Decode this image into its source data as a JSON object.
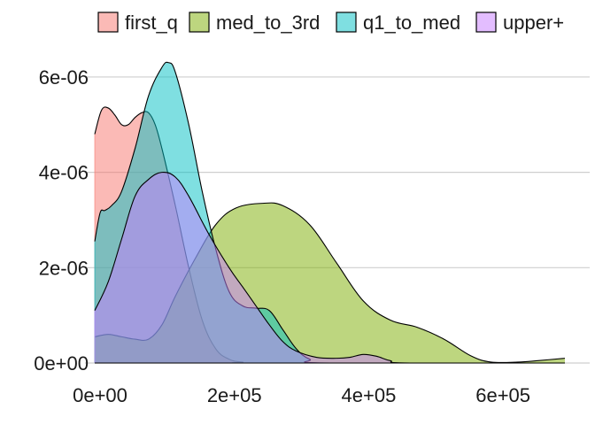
{
  "chart_data": {
    "type": "area",
    "x_axis": {
      "min": 0,
      "max": 700000,
      "ticks": [
        0,
        200000,
        400000,
        600000
      ],
      "tick_labels": [
        "0e+00",
        "2e+05",
        "4e+05",
        "6e+05"
      ]
    },
    "y_axis": {
      "min": 0,
      "max": 6.5e-06,
      "ticks": [
        0,
        2e-06,
        4e-06,
        6e-06
      ],
      "tick_labels": [
        "0e+00",
        "2e-06",
        "4e-06",
        "6e-06"
      ]
    },
    "grid": "horizontal",
    "legend_position": "top",
    "series": [
      {
        "name": "first_q",
        "color": "#F8766D",
        "points": [
          [
            0,
            4.8e-06
          ],
          [
            10000,
            5.3e-06
          ],
          [
            20000,
            5.35e-06
          ],
          [
            30000,
            5.2e-06
          ],
          [
            40000,
            5e-06
          ],
          [
            50000,
            5e-06
          ],
          [
            60000,
            5.15e-06
          ],
          [
            70000,
            5.25e-06
          ],
          [
            80000,
            5.25e-06
          ],
          [
            90000,
            5e-06
          ],
          [
            100000,
            4.5e-06
          ],
          [
            120000,
            3.3e-06
          ],
          [
            140000,
            2e-06
          ],
          [
            160000,
            9e-07
          ],
          [
            180000,
            3e-07
          ],
          [
            200000,
            8e-08
          ],
          [
            220000,
            2e-08
          ],
          [
            250000,
            0
          ],
          [
            700000,
            0
          ]
        ]
      },
      {
        "name": "med_to_3rd",
        "color": "#7CAE00",
        "points": [
          [
            0,
            5.5e-07
          ],
          [
            20000,
            6e-07
          ],
          [
            40000,
            5.5e-07
          ],
          [
            60000,
            5e-07
          ],
          [
            80000,
            5e-07
          ],
          [
            100000,
            8e-07
          ],
          [
            120000,
            1.4e-06
          ],
          [
            150000,
            2.2e-06
          ],
          [
            180000,
            2.9e-06
          ],
          [
            210000,
            3.25e-06
          ],
          [
            250000,
            3.35e-06
          ],
          [
            280000,
            3.3e-06
          ],
          [
            320000,
            2.9e-06
          ],
          [
            360000,
            2.1e-06
          ],
          [
            400000,
            1.3e-06
          ],
          [
            440000,
            9e-07
          ],
          [
            480000,
            7.5e-07
          ],
          [
            520000,
            5e-07
          ],
          [
            560000,
            1.5e-07
          ],
          [
            590000,
            2e-08
          ],
          [
            630000,
            2e-08
          ],
          [
            660000,
            5e-08
          ],
          [
            700000,
            1e-07
          ]
        ]
      },
      {
        "name": "q1_to_med",
        "color": "#00BFC4",
        "points": [
          [
            0,
            2.55e-06
          ],
          [
            8000,
            3.15e-06
          ],
          [
            15000,
            3.2e-06
          ],
          [
            25000,
            3.3e-06
          ],
          [
            40000,
            3.6e-06
          ],
          [
            60000,
            4.5e-06
          ],
          [
            80000,
            5.6e-06
          ],
          [
            100000,
            6.2e-06
          ],
          [
            110000,
            6.3e-06
          ],
          [
            120000,
            6.1e-06
          ],
          [
            140000,
            5e-06
          ],
          [
            160000,
            3.6e-06
          ],
          [
            180000,
            2.4e-06
          ],
          [
            200000,
            1.5e-06
          ],
          [
            220000,
            1.2e-06
          ],
          [
            240000,
            1.15e-06
          ],
          [
            260000,
            1.1e-06
          ],
          [
            280000,
            7e-07
          ],
          [
            300000,
            3e-07
          ],
          [
            320000,
            8e-08
          ],
          [
            350000,
            0
          ],
          [
            700000,
            0
          ]
        ]
      },
      {
        "name": "upper+",
        "color": "#C77CFF",
        "points": [
          [
            0,
            1.1e-06
          ],
          [
            20000,
            1.7e-06
          ],
          [
            40000,
            2.6e-06
          ],
          [
            60000,
            3.5e-06
          ],
          [
            80000,
            3.85e-06
          ],
          [
            100000,
            4e-06
          ],
          [
            120000,
            3.9e-06
          ],
          [
            140000,
            3.5e-06
          ],
          [
            170000,
            2.7e-06
          ],
          [
            200000,
            2e-06
          ],
          [
            220000,
            1.6e-06
          ],
          [
            240000,
            1.2e-06
          ],
          [
            260000,
            8e-07
          ],
          [
            280000,
            4.5e-07
          ],
          [
            300000,
            2.5e-07
          ],
          [
            330000,
            1.2e-07
          ],
          [
            360000,
            1e-07
          ],
          [
            380000,
            1.2e-07
          ],
          [
            400000,
            1.8e-07
          ],
          [
            420000,
            1.4e-07
          ],
          [
            440000,
            5e-08
          ],
          [
            470000,
            0
          ],
          [
            700000,
            0
          ]
        ]
      }
    ]
  }
}
